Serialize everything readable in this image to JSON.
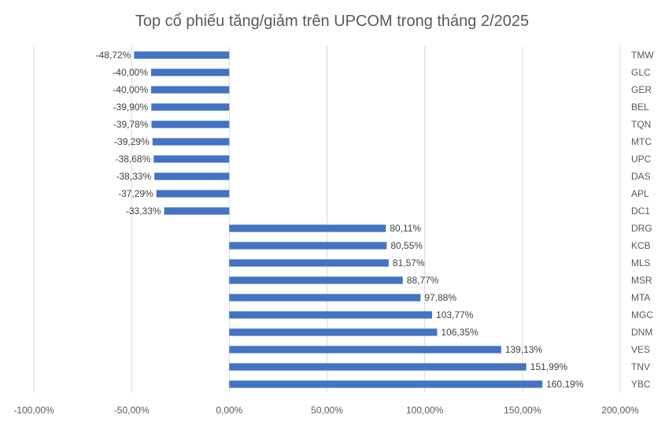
{
  "chart_data": {
    "type": "bar",
    "orientation": "horizontal",
    "title": "Top cổ phiếu tăng/giảm trên UPCOM trong tháng 2/2025",
    "xlim": [
      -100,
      200
    ],
    "xticks": [
      -100,
      -50,
      0,
      50,
      100,
      150,
      200
    ],
    "xtick_labels": [
      "-100,00%",
      "-50,00%",
      "0,00%",
      "50,00%",
      "100,00%",
      "150,00%",
      "200,00%"
    ],
    "grid": true,
    "categories": [
      "TMW",
      "GLC",
      "GER",
      "BEL",
      "TQN",
      "MTC",
      "UPC",
      "DAS",
      "APL",
      "DC1",
      "DRG",
      "KCB",
      "MLS",
      "MSR",
      "MTA",
      "MGC",
      "DNM",
      "VES",
      "TNV",
      "YBC"
    ],
    "values": [
      -48.72,
      -40.0,
      -40.0,
      -39.9,
      -39.78,
      -39.29,
      -38.68,
      -38.33,
      -37.29,
      -33.33,
      80.11,
      80.55,
      81.57,
      88.77,
      97.88,
      103.77,
      106.35,
      139.13,
      151.99,
      160.19
    ],
    "data_labels": [
      "-48,72%",
      "-40,00%",
      "-40,00%",
      "-39,90%",
      "-39,78%",
      "-39,29%",
      "-38,68%",
      "-38,33%",
      "-37,29%",
      "-33,33%",
      "80,11%",
      "80,55%",
      "81,57%",
      "88,77%",
      "97,88%",
      "103,77%",
      "106,35%",
      "139,13%",
      "151,99%",
      "160,19%"
    ],
    "bar_color": "#4472c4"
  }
}
